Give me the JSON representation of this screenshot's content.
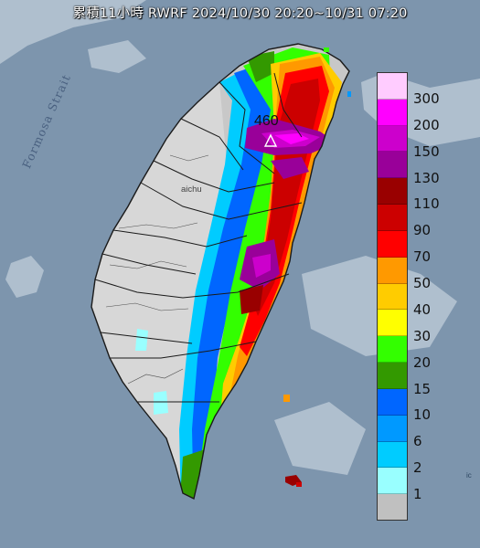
{
  "header": {
    "title": "累積11小時 RWRF 2024/10/30 20:20~10/31 07:20"
  },
  "map": {
    "sea_label": "Formosa Strait",
    "peak_label": "460",
    "city_label": "aichu",
    "edge_label": "ic"
  },
  "legend": {
    "items": [
      {
        "label": "300",
        "color": "#ffccff"
      },
      {
        "label": "200",
        "color": "#ff00ff"
      },
      {
        "label": "150",
        "color": "#cc00cc"
      },
      {
        "label": "130",
        "color": "#990099"
      },
      {
        "label": "110",
        "color": "#990000"
      },
      {
        "label": "90",
        "color": "#cc0000"
      },
      {
        "label": "70",
        "color": "#ff0000"
      },
      {
        "label": "50",
        "color": "#ff9900"
      },
      {
        "label": "40",
        "color": "#ffcc00"
      },
      {
        "label": "30",
        "color": "#ffff00"
      },
      {
        "label": "20",
        "color": "#33ff00"
      },
      {
        "label": "15",
        "color": "#339900"
      },
      {
        "label": "10",
        "color": "#0066ff"
      },
      {
        "label": "6",
        "color": "#0099ff"
      },
      {
        "label": "2",
        "color": "#00ccff"
      },
      {
        "label": "1",
        "color": "#99ffff"
      },
      {
        "label": "",
        "color": "#c0c0c0"
      }
    ]
  }
}
